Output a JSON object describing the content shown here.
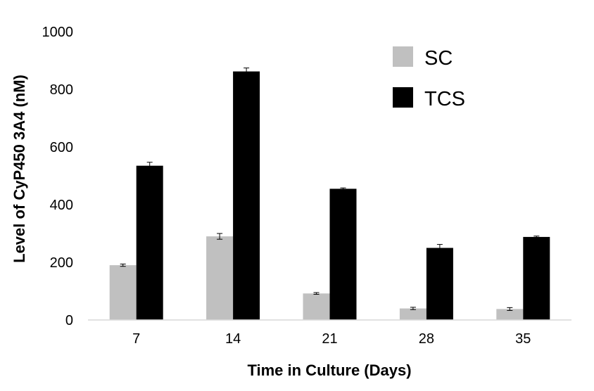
{
  "chart_data": {
    "type": "bar",
    "title": "",
    "xlabel": "Time  in Culture (Days)",
    "ylabel": "Level of CyP450 3A4 (nM)",
    "ylim": [
      0,
      1000
    ],
    "yticks": [
      "0",
      "200",
      "400",
      "600",
      "800",
      "1000"
    ],
    "categories": [
      "7",
      "14",
      "21",
      "28",
      "35"
    ],
    "grid": false,
    "legend_position": "top-right",
    "series": [
      {
        "name": "SC",
        "color": "#c0c0c0",
        "values": [
          190,
          290,
          92,
          40,
          38
        ],
        "errors": [
          4,
          10,
          3,
          4,
          5
        ]
      },
      {
        "name": "TCS",
        "color": "#000000",
        "values": [
          535,
          862,
          455,
          250,
          288
        ],
        "errors": [
          12,
          12,
          3,
          12,
          3
        ]
      }
    ]
  }
}
